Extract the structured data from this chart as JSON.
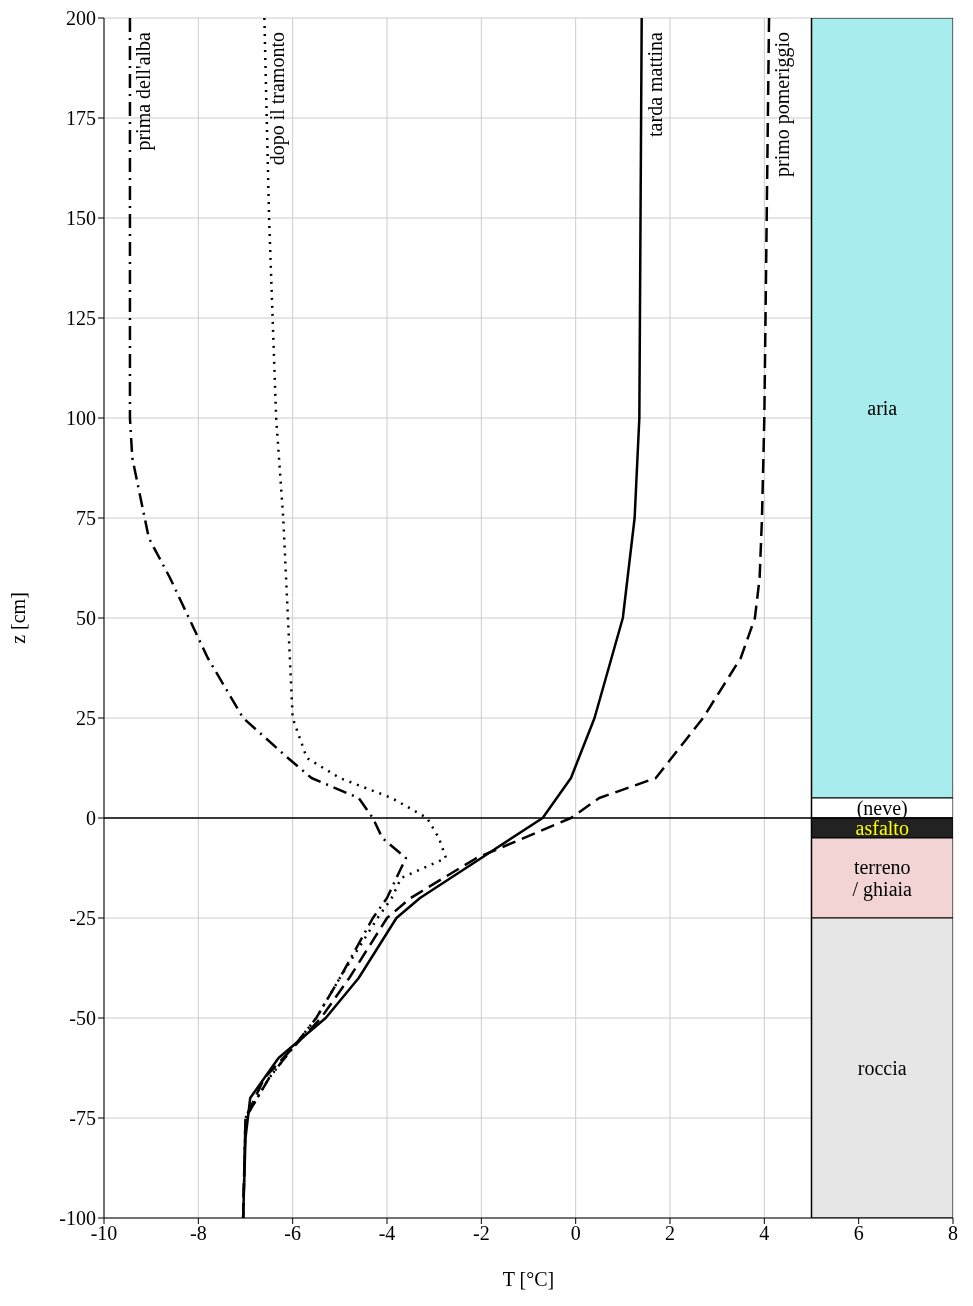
{
  "chart_data": {
    "type": "line",
    "xlabel": "T [°C]",
    "ylabel": "z [cm]",
    "xlim": [
      -10,
      8
    ],
    "xticks": [
      -10,
      -8,
      -6,
      -4,
      -2,
      0,
      2,
      4,
      6,
      8
    ],
    "ylim": [
      -100,
      200
    ],
    "yticks": [
      -100,
      -75,
      -50,
      -25,
      0,
      25,
      50,
      75,
      100,
      125,
      150,
      175,
      200
    ],
    "grid": true,
    "series": [
      {
        "name": "prima dell'alba",
        "color": "#000000",
        "line_style": "dashdot",
        "x": [
          -9.45,
          -9.45,
          -9.4,
          -9.05,
          -8.6,
          -8.2,
          -7.8,
          -7.05,
          -6.1,
          -5.6,
          -4.6,
          -4.3,
          -4.1,
          -3.6,
          -4.0,
          -4.3,
          -5.0,
          -5.5,
          -6.5,
          -7.0,
          -7.05
        ],
        "values": [
          200,
          100,
          90,
          70,
          60,
          50,
          40,
          25,
          15,
          10,
          5,
          0,
          -5,
          -10,
          -20,
          -25,
          -40,
          -50,
          -65,
          -75,
          -100
        ]
      },
      {
        "name": "dopo il tramonto",
        "color": "#000000",
        "line_style": "dotted",
        "x": [
          -6.6,
          -6.5,
          -6.35,
          -6.2,
          -6.1,
          -6.0,
          -5.7,
          -5.0,
          -3.9,
          -3.15,
          -2.9,
          -2.75,
          -3.7,
          -3.9,
          -4.2,
          -5.0,
          -5.5,
          -6.5,
          -7.0,
          -7.05
        ],
        "values": [
          200,
          150,
          100,
          75,
          50,
          25,
          15,
          10,
          5,
          0,
          -5,
          -10,
          -15,
          -20,
          -25,
          -40,
          -50,
          -65,
          -75,
          -100
        ]
      },
      {
        "name": "tarda mattina",
        "color": "#000000",
        "line_style": "solid",
        "x": [
          1.4,
          1.35,
          1.25,
          1.0,
          0.4,
          -0.1,
          -0.7,
          -2.0,
          -3.3,
          -3.8,
          -4.6,
          -5.3,
          -6.3,
          -6.9,
          -7.0,
          -7.05
        ],
        "values": [
          200,
          100,
          75,
          50,
          25,
          10,
          0,
          -10,
          -20,
          -25,
          -40,
          -50,
          -60,
          -70,
          -80,
          -100
        ]
      },
      {
        "name": "primo pomeriggio",
        "color": "#000000",
        "line_style": "dashed",
        "x": [
          4.1,
          4.0,
          3.95,
          3.9,
          3.8,
          3.5,
          2.7,
          1.7,
          0.5,
          -0.1,
          -2.1,
          -3.5,
          -4.0,
          -4.8,
          -5.4,
          -6.6,
          -7.0,
          -7.05
        ],
        "values": [
          200,
          100,
          75,
          60,
          50,
          40,
          25,
          10,
          5,
          0,
          -10,
          -20,
          -25,
          -40,
          -50,
          -65,
          -75,
          -100
        ]
      }
    ],
    "ref_lines": [
      {
        "axis": "y",
        "value": 0
      },
      {
        "axis": "x",
        "value": 5
      }
    ],
    "bands": [
      {
        "axis": "y",
        "from": 5,
        "to": 200,
        "label": "aria",
        "color": "#a8ecee"
      },
      {
        "axis": "y",
        "from": 0,
        "to": 5,
        "label": "(neve)",
        "color": "#ffffff"
      },
      {
        "axis": "y",
        "from": -5,
        "to": 0,
        "label": "asfalto",
        "color": "#222222"
      },
      {
        "axis": "y",
        "from": -25,
        "to": -5,
        "label": "terreno / ghiaia",
        "color": "#f2d4d4"
      },
      {
        "axis": "y",
        "from": -100,
        "to": -25,
        "label": "roccia",
        "color": "#e6e6e6"
      }
    ]
  }
}
